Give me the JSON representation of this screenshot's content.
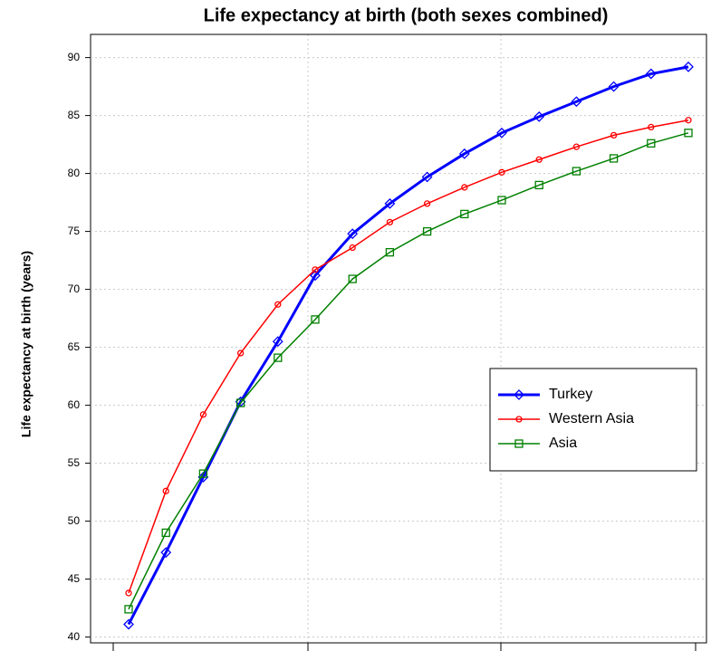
{
  "chart_data": {
    "type": "line",
    "title": "Life expectancy at birth (both sexes combined)",
    "y_label": "Life expectancy at birth (years)",
    "categories": [
      null,
      null,
      null,
      null,
      null,
      null,
      null,
      null,
      null,
      null,
      null,
      null,
      null,
      null,
      null,
      null
    ],
    "series": [
      {
        "name": "Turkey",
        "color": "#0000ff",
        "marker": "diamond",
        "values": [
          41.1,
          47.3,
          53.8,
          60.3,
          65.5,
          71.2,
          74.8,
          77.4,
          79.7,
          81.7,
          83.5,
          84.9,
          86.2,
          87.5,
          88.6,
          89.2
        ]
      },
      {
        "name": "Western Asia",
        "color": "#ff0000",
        "marker": "circle",
        "values": [
          43.8,
          52.6,
          59.2,
          64.5,
          68.7,
          71.7,
          73.6,
          75.8,
          77.4,
          78.8,
          80.1,
          81.2,
          82.3,
          83.3,
          84.0,
          84.6
        ]
      },
      {
        "name": "Asia",
        "color": "#008000",
        "marker": "square",
        "values": [
          42.4,
          49.0,
          54.1,
          60.2,
          64.1,
          67.4,
          70.9,
          73.2,
          75.0,
          76.5,
          77.7,
          79.0,
          80.2,
          81.3,
          82.6,
          83.5
        ]
      }
    ],
    "ylim": [
      39.5,
      92
    ],
    "yticks": [
      40,
      45,
      50,
      55,
      60,
      65,
      70,
      75,
      80,
      85,
      90
    ],
    "grid": true,
    "legend": "right"
  }
}
